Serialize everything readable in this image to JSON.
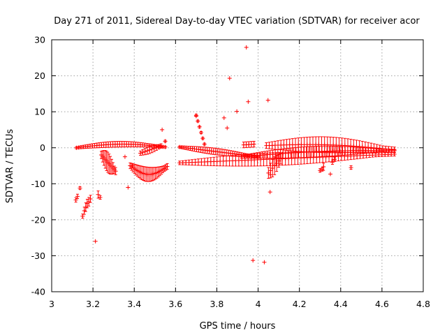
{
  "chart_data": {
    "type": "scatter",
    "title": "Day 271 of 2011, Sidereal Day-to-day VTEC variation (SDTVAR) for receiver acor",
    "xlabel": "GPS time / hours",
    "ylabel": "SDTVAR / TECUs",
    "xlim": [
      3,
      4.8
    ],
    "ylim": [
      -40,
      30
    ],
    "xticks": [
      "3",
      "3.2",
      "3.4",
      "3.6",
      "3.8",
      "4",
      "4.2",
      "4.4",
      "4.6",
      "4.8"
    ],
    "yticks": [
      "30",
      "20",
      "10",
      "0",
      "-10",
      "-20",
      "-30",
      "-40"
    ],
    "grid": true,
    "marker": "+",
    "color": "#ff0000",
    "series": [
      {
        "name": "SDTVAR",
        "error_bars": true,
        "segments": [
          {
            "x0": 3.12,
            "x1": 3.55,
            "n": 40,
            "y0": 0.0,
            "y1": 0.2,
            "bump": 0.9,
            "err0": 0.3,
            "err1": 0.8
          },
          {
            "x0": 3.24,
            "x1": 3.31,
            "n": 12,
            "y0": -2.0,
            "y1": -6.5,
            "bump": 0,
            "err0": 1.0,
            "err1": 2.8
          },
          {
            "x0": 3.38,
            "x1": 3.56,
            "n": 26,
            "y0": -5.0,
            "y1": -5.2,
            "bump": -2.3,
            "err0": 0.8,
            "err1": 2.0
          },
          {
            "x0": 3.43,
            "x1": 3.53,
            "n": 10,
            "y0": -1.5,
            "y1": 0.5,
            "bump": 0,
            "err0": 0.6,
            "err1": 1.0
          },
          {
            "x0": 3.62,
            "x1": 4.0,
            "n": 38,
            "y0": 0.2,
            "y1": -2.5,
            "bump": 0,
            "err0": 0.3,
            "err1": 0.9
          },
          {
            "x0": 3.62,
            "x1": 4.66,
            "n": 70,
            "y0": -4.2,
            "y1": -1.8,
            "bump": 0,
            "err0": 0.5,
            "err1": 1.8
          },
          {
            "x0": 3.92,
            "x1": 4.66,
            "n": 60,
            "y0": -2.5,
            "y1": -0.8,
            "bump": 0.6,
            "err0": 0.4,
            "err1": 1.5
          },
          {
            "x0": 4.04,
            "x1": 4.66,
            "n": 45,
            "y0": 0.6,
            "y1": -0.6,
            "bump": 0.8,
            "err0": 0.8,
            "err1": 2.2
          },
          {
            "x0": 4.05,
            "x1": 4.11,
            "n": 7,
            "y0": -7.0,
            "y1": -3.0,
            "bump": 0,
            "err0": 1.5,
            "err1": 2.5
          },
          {
            "x0": 3.7,
            "x1": 3.74,
            "n": 6,
            "y0": 9.0,
            "y1": 1.0,
            "bump": 0,
            "err0": 0.3,
            "err1": 0.3
          },
          {
            "x0": 3.93,
            "x1": 3.98,
            "n": 5,
            "y0": 0.8,
            "y1": 1.0,
            "bump": 0,
            "err0": 0.8,
            "err1": 0.8
          }
        ],
        "points": [
          {
            "x": 3.117,
            "y": -14.5,
            "err": 0.6
          },
          {
            "x": 3.125,
            "y": -13.5,
            "err": 0.6
          },
          {
            "x": 3.137,
            "y": -11.2,
            "err": 0.4
          },
          {
            "x": 3.15,
            "y": -19.0,
            "err": 0.6
          },
          {
            "x": 3.158,
            "y": -17.5,
            "err": 1.0
          },
          {
            "x": 3.165,
            "y": -16.5,
            "err": 1.2
          },
          {
            "x": 3.172,
            "y": -15.5,
            "err": 1.2
          },
          {
            "x": 3.18,
            "y": -15.0,
            "err": 1.2
          },
          {
            "x": 3.188,
            "y": -14.2,
            "err": 1.0
          },
          {
            "x": 3.212,
            "y": -26.0,
            "err": 0
          },
          {
            "x": 3.225,
            "y": -13.0,
            "err": 1.0
          },
          {
            "x": 3.235,
            "y": -13.8,
            "err": 0.5
          },
          {
            "x": 3.355,
            "y": -2.5,
            "err": 0
          },
          {
            "x": 3.37,
            "y": -11.0,
            "err": 0
          },
          {
            "x": 3.39,
            "y": -5.0,
            "err": 0
          },
          {
            "x": 3.535,
            "y": 5.0,
            "err": 0
          },
          {
            "x": 3.55,
            "y": 1.8,
            "err": 0.3
          },
          {
            "x": 3.7,
            "y": 8.8,
            "err": 0
          },
          {
            "x": 3.835,
            "y": 8.3,
            "err": 0
          },
          {
            "x": 3.85,
            "y": 5.5,
            "err": 0
          },
          {
            "x": 3.862,
            "y": 19.3,
            "err": 0
          },
          {
            "x": 3.897,
            "y": 10.1,
            "err": 0
          },
          {
            "x": 3.943,
            "y": 27.9,
            "err": 0
          },
          {
            "x": 3.952,
            "y": 12.8,
            "err": 0
          },
          {
            "x": 3.975,
            "y": -31.3,
            "err": 0
          },
          {
            "x": 4.03,
            "y": -31.8,
            "err": 0
          },
          {
            "x": 4.048,
            "y": 13.2,
            "err": 0
          },
          {
            "x": 4.058,
            "y": -12.3,
            "err": 0
          },
          {
            "x": 4.06,
            "y": -7.5,
            "err": 0
          },
          {
            "x": 4.3,
            "y": -6.3,
            "err": 0.5
          },
          {
            "x": 4.31,
            "y": -6.0,
            "err": 0.5
          },
          {
            "x": 4.317,
            "y": -5.3,
            "err": 1.0
          },
          {
            "x": 4.35,
            "y": -7.3,
            "err": 0
          },
          {
            "x": 4.36,
            "y": -4.0,
            "err": 0.6
          },
          {
            "x": 4.37,
            "y": -3.2,
            "err": 0.6
          },
          {
            "x": 4.45,
            "y": -5.5,
            "err": 0.5
          }
        ]
      }
    ]
  }
}
